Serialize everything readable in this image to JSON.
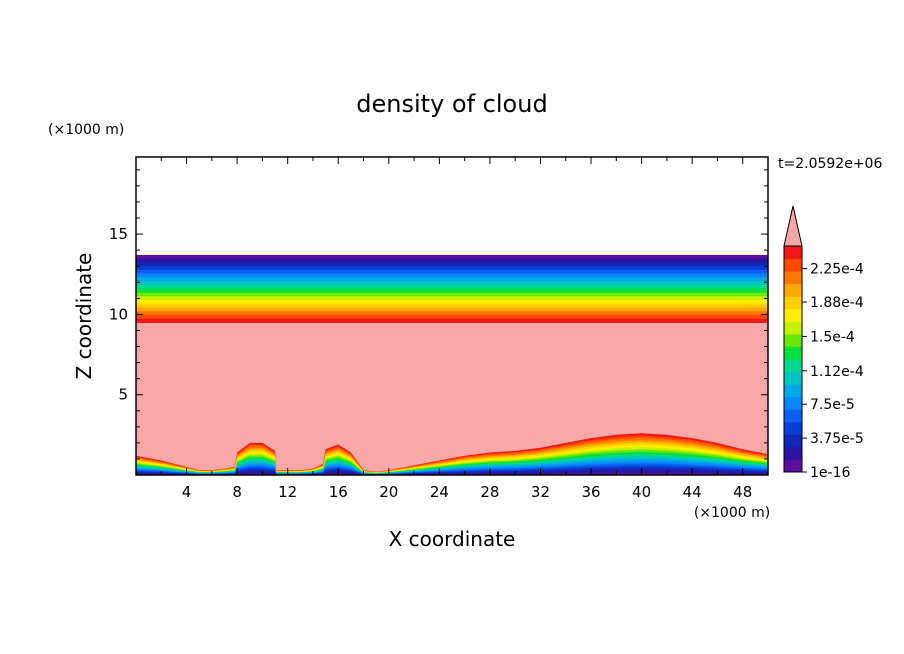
{
  "chart_data": {
    "type": "heatmap",
    "title": "density of cloud",
    "time_label": "t=2.0592e+06",
    "xlabel": "X coordinate",
    "ylabel": "Z coordinate",
    "x_unit": "(×1000 m)",
    "y_unit": "(×1000 m)",
    "xlim": [
      0,
      50
    ],
    "ylim": [
      0,
      19.8
    ],
    "x_ticks": [
      4,
      8,
      12,
      16,
      20,
      24,
      28,
      32,
      36,
      40,
      44,
      48
    ],
    "x_tick_labels": [
      "4",
      "8",
      "12",
      "16",
      "20",
      "24",
      "28",
      "32",
      "36",
      "40",
      "44",
      "48"
    ],
    "y_ticks": [
      5,
      10,
      15
    ],
    "y_tick_labels": [
      "5",
      "10",
      "15"
    ],
    "grid": false,
    "colorbar": {
      "position": "right",
      "extend": "max",
      "over_color": "#f9a8a8",
      "colors": [
        "#5a0f9f",
        "#2a14a0",
        "#1226b8",
        "#0a3fd4",
        "#0b60f0",
        "#0a86ff",
        "#00a8e8",
        "#00c4c0",
        "#00d890",
        "#00e040",
        "#68e800",
        "#c8f000",
        "#fff000",
        "#ffd000",
        "#ffa800",
        "#ff7800",
        "#ff4a00",
        "#f01818"
      ],
      "tick_labels": [
        "1e-16",
        "3.75e-5",
        "7.5e-5",
        "1.12e-4",
        "1.5e-4",
        "1.88e-4",
        "2.25e-4"
      ],
      "tick_values": [
        0,
        3.75e-05,
        7.5e-05,
        0.000112,
        0.00015,
        0.000188,
        0.000225
      ],
      "max_value": 0.00025
    },
    "layers": {
      "upper_cloud_top_z": 13.7,
      "upper_cloud_base_z": 9.5,
      "ground_profile": {
        "x": [
          0,
          2,
          4,
          5,
          6,
          7,
          7.8,
          8,
          9,
          10,
          11,
          11.1,
          12,
          13,
          14,
          14.8,
          15,
          16,
          17,
          18,
          19,
          20,
          22,
          24,
          26,
          28,
          30,
          32,
          34,
          36,
          38,
          40,
          42,
          44,
          46,
          48,
          50
        ],
        "z": [
          1.2,
          0.9,
          0.5,
          0.3,
          0.3,
          0.4,
          0.5,
          1.4,
          2.0,
          2.0,
          1.5,
          0.3,
          0.3,
          0.3,
          0.4,
          0.7,
          1.6,
          1.9,
          1.4,
          0.3,
          0.2,
          0.3,
          0.6,
          0.9,
          1.2,
          1.4,
          1.5,
          1.7,
          2.0,
          2.3,
          2.5,
          2.6,
          2.5,
          2.3,
          2.0,
          1.6,
          1.3
        ]
      }
    }
  }
}
